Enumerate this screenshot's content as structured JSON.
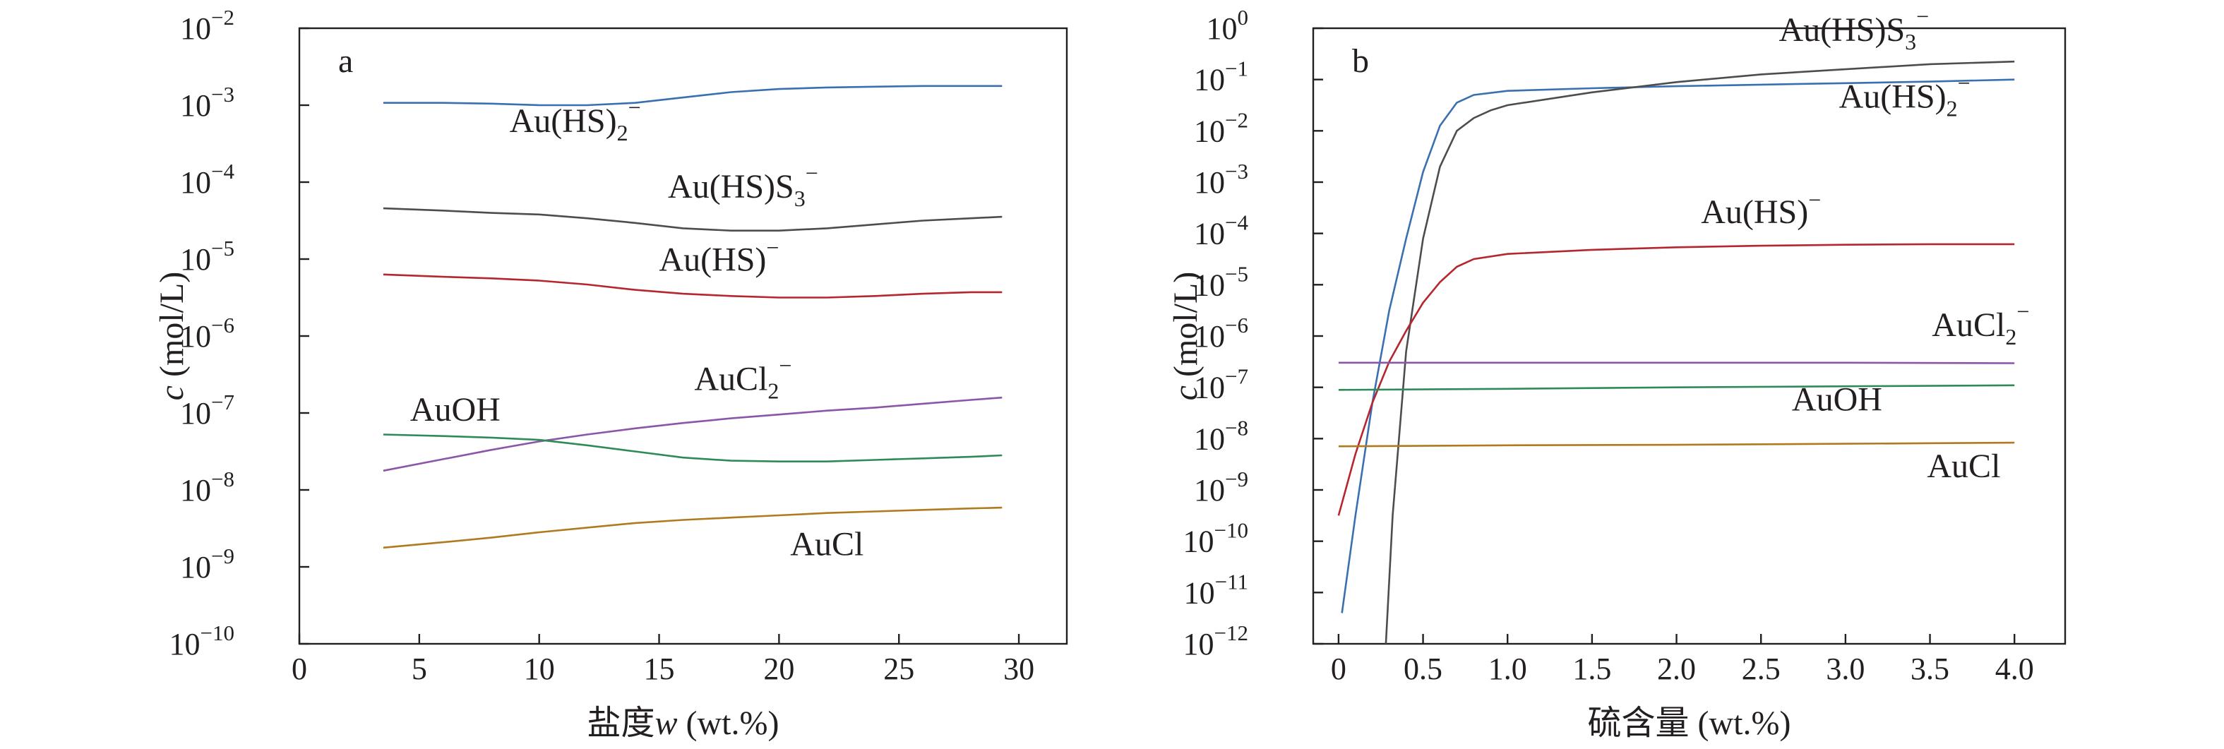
{
  "chart_data": [
    {
      "type": "line",
      "panel_label": "a",
      "xlabel_main": "盐度",
      "xlabel_var": "w",
      "xlabel_unit": " (wt.%)",
      "ylabel_var": "c",
      "ylabel_unit": " (mol/L)",
      "xlim": [
        0,
        32
      ],
      "ylim_log10": [
        -10,
        -2
      ],
      "y_scale": "log",
      "x_ticks": [
        0,
        5,
        10,
        15,
        20,
        25,
        30
      ],
      "x_tick_labels": [
        "0",
        "5",
        "10",
        "15",
        "20",
        "25",
        "30"
      ],
      "y_tick_exponents": [
        -10,
        -9,
        -8,
        -7,
        -6,
        -5,
        -4,
        -3,
        -2
      ],
      "y_tick_base": "10",
      "y_tick_exp_labels": [
        "−10",
        "−9",
        "−8",
        "−7",
        "−6",
        "−5",
        "−4",
        "−3",
        "−2"
      ],
      "series": [
        {
          "key": "au_hs2",
          "label": "Au(HS)",
          "label_sub": "2",
          "label_sup": "−",
          "color": "#3a6fb0",
          "x": [
            3.5,
            6,
            8,
            10,
            12,
            14,
            16,
            18,
            20,
            22,
            24,
            26,
            28,
            29.3
          ],
          "log10y": [
            -2.97,
            -2.97,
            -2.98,
            -3.0,
            -3.0,
            -2.97,
            -2.9,
            -2.83,
            -2.79,
            -2.77,
            -2.76,
            -2.75,
            -2.75,
            -2.75
          ]
        },
        {
          "key": "au_hs_s3",
          "label": "Au(HS)S",
          "label_sub": "3",
          "label_sup": "−",
          "color": "#4d4d4d",
          "x": [
            3.5,
            6,
            8,
            10,
            12,
            14,
            16,
            18,
            20,
            22,
            24,
            26,
            28,
            29.3
          ],
          "log10y": [
            -4.34,
            -4.37,
            -4.4,
            -4.42,
            -4.47,
            -4.53,
            -4.6,
            -4.63,
            -4.63,
            -4.6,
            -4.55,
            -4.5,
            -4.47,
            -4.45
          ]
        },
        {
          "key": "au_hs",
          "label": "Au(HS)",
          "label_sub": "",
          "label_sup": "−",
          "color": "#b5262f",
          "x": [
            3.5,
            6,
            8,
            10,
            12,
            14,
            16,
            18,
            20,
            22,
            24,
            26,
            28,
            29.3
          ],
          "log10y": [
            -5.2,
            -5.23,
            -5.25,
            -5.28,
            -5.33,
            -5.4,
            -5.45,
            -5.48,
            -5.5,
            -5.5,
            -5.48,
            -5.45,
            -5.43,
            -5.43
          ]
        },
        {
          "key": "aucl2",
          "label": "AuCl",
          "label_sub": "2",
          "label_sup": "−",
          "color": "#8b55a8",
          "x": [
            3.5,
            6,
            8,
            10,
            12,
            14,
            16,
            18,
            20,
            22,
            24,
            26,
            28,
            29.3
          ],
          "log10y": [
            -7.75,
            -7.6,
            -7.48,
            -7.37,
            -7.28,
            -7.2,
            -7.13,
            -7.07,
            -7.02,
            -6.97,
            -6.93,
            -6.88,
            -6.83,
            -6.8
          ]
        },
        {
          "key": "auoh",
          "label": "AuOH",
          "label_sub": "",
          "label_sup": "",
          "color": "#2e8b57",
          "x": [
            3.5,
            6,
            8,
            10,
            12,
            14,
            16,
            18,
            20,
            22,
            24,
            26,
            28,
            29.3
          ],
          "log10y": [
            -7.28,
            -7.3,
            -7.32,
            -7.35,
            -7.42,
            -7.5,
            -7.58,
            -7.62,
            -7.63,
            -7.63,
            -7.61,
            -7.59,
            -7.57,
            -7.55
          ]
        },
        {
          "key": "aucl",
          "label": "AuCl",
          "label_sub": "",
          "label_sup": "",
          "color": "#b07a1e",
          "x": [
            3.5,
            6,
            8,
            10,
            12,
            14,
            16,
            18,
            20,
            22,
            24,
            26,
            28,
            29.3
          ],
          "log10y": [
            -8.75,
            -8.68,
            -8.62,
            -8.55,
            -8.49,
            -8.43,
            -8.39,
            -8.36,
            -8.33,
            -8.3,
            -8.28,
            -8.26,
            -8.24,
            -8.23
          ]
        }
      ],
      "labels": [
        {
          "series": "au_hs2",
          "x": 11.5,
          "log10y": -3.35
        },
        {
          "series": "au_hs_s3",
          "x": 18.5,
          "log10y": -4.2
        },
        {
          "series": "au_hs",
          "x": 17.5,
          "log10y": -5.15
        },
        {
          "series": "aucl2",
          "x": 18.5,
          "log10y": -6.7
        },
        {
          "series": "auoh",
          "x": 6.5,
          "log10y": -7.1
        },
        {
          "series": "aucl",
          "x": 22,
          "log10y": -8.85
        }
      ]
    },
    {
      "type": "line",
      "panel_label": "b",
      "xlabel_main": "硫含量",
      "xlabel_var": "",
      "xlabel_unit": " (wt.%)",
      "ylabel_var": "c",
      "ylabel_unit": " (mol/L)",
      "xlim": [
        -0.15,
        4.3
      ],
      "ylim_log10": [
        -12,
        0
      ],
      "y_scale": "log",
      "x_ticks": [
        0,
        0.5,
        1.0,
        1.5,
        2.0,
        2.5,
        3.0,
        3.5,
        4.0
      ],
      "x_tick_labels": [
        "0",
        "0.5",
        "1.0",
        "1.5",
        "2.0",
        "2.5",
        "3.0",
        "3.5",
        "4.0"
      ],
      "y_tick_exponents": [
        -12,
        -11,
        -10,
        -9,
        -8,
        -7,
        -6,
        -5,
        -4,
        -3,
        -2,
        -1,
        0
      ],
      "y_tick_base": "10",
      "y_tick_exp_labels": [
        "−12",
        "−11",
        "−10",
        "−9",
        "−8",
        "−7",
        "−6",
        "−5",
        "−4",
        "−3",
        "−2",
        "−1",
        "0"
      ],
      "series": [
        {
          "key": "b_au_hs2",
          "label": "Au(HS)",
          "label_sub": "2",
          "label_sup": "−",
          "color": "#3a6fb0",
          "x": [
            0.02,
            0.1,
            0.2,
            0.3,
            0.4,
            0.5,
            0.6,
            0.7,
            0.8,
            1.0,
            1.5,
            2.0,
            2.5,
            3.0,
            3.5,
            4.0
          ],
          "log10y": [
            -11.4,
            -9.5,
            -7.3,
            -5.5,
            -4.1,
            -2.8,
            -1.9,
            -1.45,
            -1.3,
            -1.22,
            -1.17,
            -1.13,
            -1.1,
            -1.07,
            -1.04,
            -1.0
          ]
        },
        {
          "key": "b_au_hs_s3",
          "label": "Au(HS)S",
          "label_sub": "3",
          "label_sup": "−",
          "color": "#4d4d4d",
          "x": [
            0.28,
            0.32,
            0.4,
            0.5,
            0.6,
            0.7,
            0.8,
            0.9,
            1.0,
            1.5,
            2.0,
            2.5,
            3.0,
            3.5,
            4.0
          ],
          "log10y": [
            -12,
            -9.5,
            -6.3,
            -4.1,
            -2.7,
            -2.0,
            -1.75,
            -1.6,
            -1.5,
            -1.25,
            -1.05,
            -0.9,
            -0.8,
            -0.7,
            -0.65
          ]
        },
        {
          "key": "b_au_hs",
          "label": "Au(HS)",
          "label_sub": "",
          "label_sup": "−",
          "color": "#b5262f",
          "x": [
            0.0,
            0.1,
            0.2,
            0.3,
            0.4,
            0.5,
            0.6,
            0.7,
            0.8,
            1.0,
            1.5,
            2.0,
            2.5,
            3.0,
            3.5,
            4.0
          ],
          "log10y": [
            -9.5,
            -8.3,
            -7.3,
            -6.5,
            -5.9,
            -5.35,
            -4.95,
            -4.65,
            -4.5,
            -4.4,
            -4.32,
            -4.27,
            -4.24,
            -4.22,
            -4.21,
            -4.21
          ]
        },
        {
          "key": "b_aucl2",
          "label": "AuCl",
          "label_sub": "2",
          "label_sup": "−",
          "color": "#8b55a8",
          "x": [
            0.0,
            1.0,
            2.0,
            3.0,
            4.0
          ],
          "log10y": [
            -6.52,
            -6.52,
            -6.52,
            -6.52,
            -6.53
          ]
        },
        {
          "key": "b_auoh",
          "label": "AuOH",
          "label_sub": "",
          "label_sup": "",
          "color": "#2e8b57",
          "x": [
            0.0,
            1.0,
            2.0,
            3.0,
            4.0
          ],
          "log10y": [
            -7.05,
            -7.03,
            -7.0,
            -6.98,
            -6.96
          ]
        },
        {
          "key": "b_aucl",
          "label": "AuCl",
          "label_sub": "",
          "label_sup": "",
          "color": "#b07a1e",
          "x": [
            0.0,
            1.0,
            2.0,
            3.0,
            4.0
          ],
          "log10y": [
            -8.15,
            -8.13,
            -8.12,
            -8.1,
            -8.08
          ]
        }
      ],
      "labels": [
        {
          "series": "b_au_hs_s3",
          "x": 3.05,
          "log10y": -0.25
        },
        {
          "series": "b_au_hs2",
          "x": 3.35,
          "log10y": -1.55
        },
        {
          "series": "b_au_hs",
          "x": 2.5,
          "log10y": -3.8
        },
        {
          "series": "b_aucl2",
          "x": 3.8,
          "log10y": -6.0
        },
        {
          "series": "b_auoh",
          "x": 2.95,
          "log10y": -7.45
        },
        {
          "series": "b_aucl",
          "x": 3.7,
          "log10y": -8.75
        }
      ]
    }
  ]
}
